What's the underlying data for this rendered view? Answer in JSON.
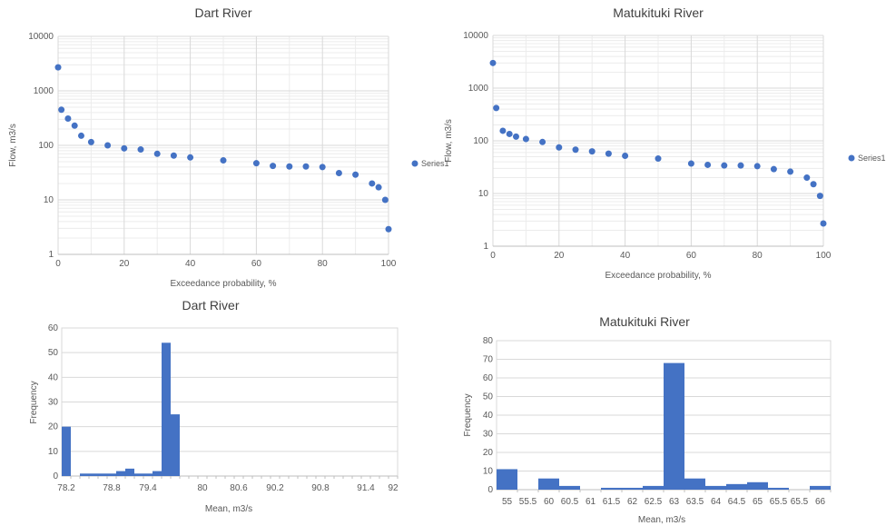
{
  "colors": {
    "series": "#4472c4",
    "grid": "#d9d9d9",
    "grid_minor": "#ececec",
    "axis": "#bfbfbf",
    "text": "#595959"
  },
  "chart_data": [
    {
      "id": "dart-fdc",
      "type": "scatter",
      "title": "Dart River",
      "xlabel": "Exceedance probability, %",
      "ylabel": "Flow, m3/s",
      "y_scale": "log",
      "xlim": [
        0,
        100
      ],
      "ylim": [
        1,
        10000
      ],
      "x_ticks": [
        "0",
        "20",
        "40",
        "60",
        "80",
        "100"
      ],
      "y_ticks": [
        "1",
        "10",
        "100",
        "1000",
        "10000"
      ],
      "grid": true,
      "legend": "right",
      "series": [
        {
          "name": "Series1",
          "x": [
            0,
            1,
            3,
            5,
            7,
            10,
            15,
            20,
            25,
            30,
            35,
            40,
            50,
            60,
            65,
            70,
            75,
            80,
            85,
            90,
            95,
            97,
            99,
            100
          ],
          "y": [
            2700,
            450,
            310,
            230,
            150,
            115,
            100,
            88,
            84,
            70,
            65,
            60,
            53,
            47,
            42,
            41,
            41,
            40,
            31,
            29,
            20,
            17,
            10,
            2.9
          ]
        }
      ]
    },
    {
      "id": "matukituki-fdc",
      "type": "scatter",
      "title": "Matukituki River",
      "xlabel": "Exceedance probability, %",
      "ylabel": "Flow, m3/s",
      "y_scale": "log",
      "xlim": [
        0,
        100
      ],
      "ylim": [
        1,
        10000
      ],
      "x_ticks": [
        "0",
        "20",
        "40",
        "60",
        "80",
        "100"
      ],
      "y_ticks": [
        "1",
        "10",
        "100",
        "1000",
        "10000"
      ],
      "grid": true,
      "legend": "right",
      "series": [
        {
          "name": "Series1",
          "x": [
            0,
            1,
            3,
            5,
            7,
            10,
            15,
            20,
            25,
            30,
            35,
            40,
            50,
            60,
            65,
            70,
            75,
            80,
            85,
            90,
            95,
            97,
            99,
            100
          ],
          "y": [
            3000,
            420,
            155,
            135,
            120,
            108,
            95,
            75,
            68,
            63,
            57,
            52,
            46,
            37,
            35,
            34,
            34,
            33,
            29,
            26,
            20,
            15,
            9,
            2.7
          ]
        }
      ]
    },
    {
      "id": "dart-hist",
      "type": "bar",
      "title": "Dart River",
      "xlabel": "Mean, m3/s",
      "ylabel": "Frequency",
      "ylim": [
        0,
        60
      ],
      "y_ticks": [
        "0",
        "10",
        "20",
        "30",
        "40",
        "50",
        "60"
      ],
      "x_tick_labels": [
        "78.2",
        "78.8",
        "79.4",
        "80",
        "80.6",
        "90.2",
        "90.8",
        "91.4",
        "92"
      ],
      "grid": true,
      "values": [
        20,
        0,
        1,
        1,
        1,
        1,
        2,
        3,
        1,
        1,
        2,
        54,
        25,
        0,
        0,
        0,
        0,
        0,
        0,
        0,
        0,
        0,
        0,
        0,
        0,
        0,
        0,
        0,
        0,
        0,
        0,
        0,
        0,
        0,
        0,
        0,
        0
      ]
    },
    {
      "id": "matukituki-hist",
      "type": "bar",
      "title": "Matukituki River",
      "xlabel": "Mean, m3/s",
      "ylabel": "Frequency",
      "ylim": [
        0,
        80
      ],
      "y_ticks": [
        "0",
        "10",
        "20",
        "30",
        "40",
        "50",
        "60",
        "70",
        "80"
      ],
      "categories": [
        "55",
        "55.5",
        "60",
        "60.5",
        "61",
        "61.5",
        "62",
        "62.5",
        "63",
        "63.5",
        "64",
        "64.5",
        "65",
        "65.5",
        "65.5",
        "66"
      ],
      "values": [
        11,
        0,
        6,
        2,
        0,
        1,
        1,
        2,
        68,
        6,
        2,
        3,
        4,
        1,
        0,
        2
      ],
      "grid": true
    }
  ]
}
